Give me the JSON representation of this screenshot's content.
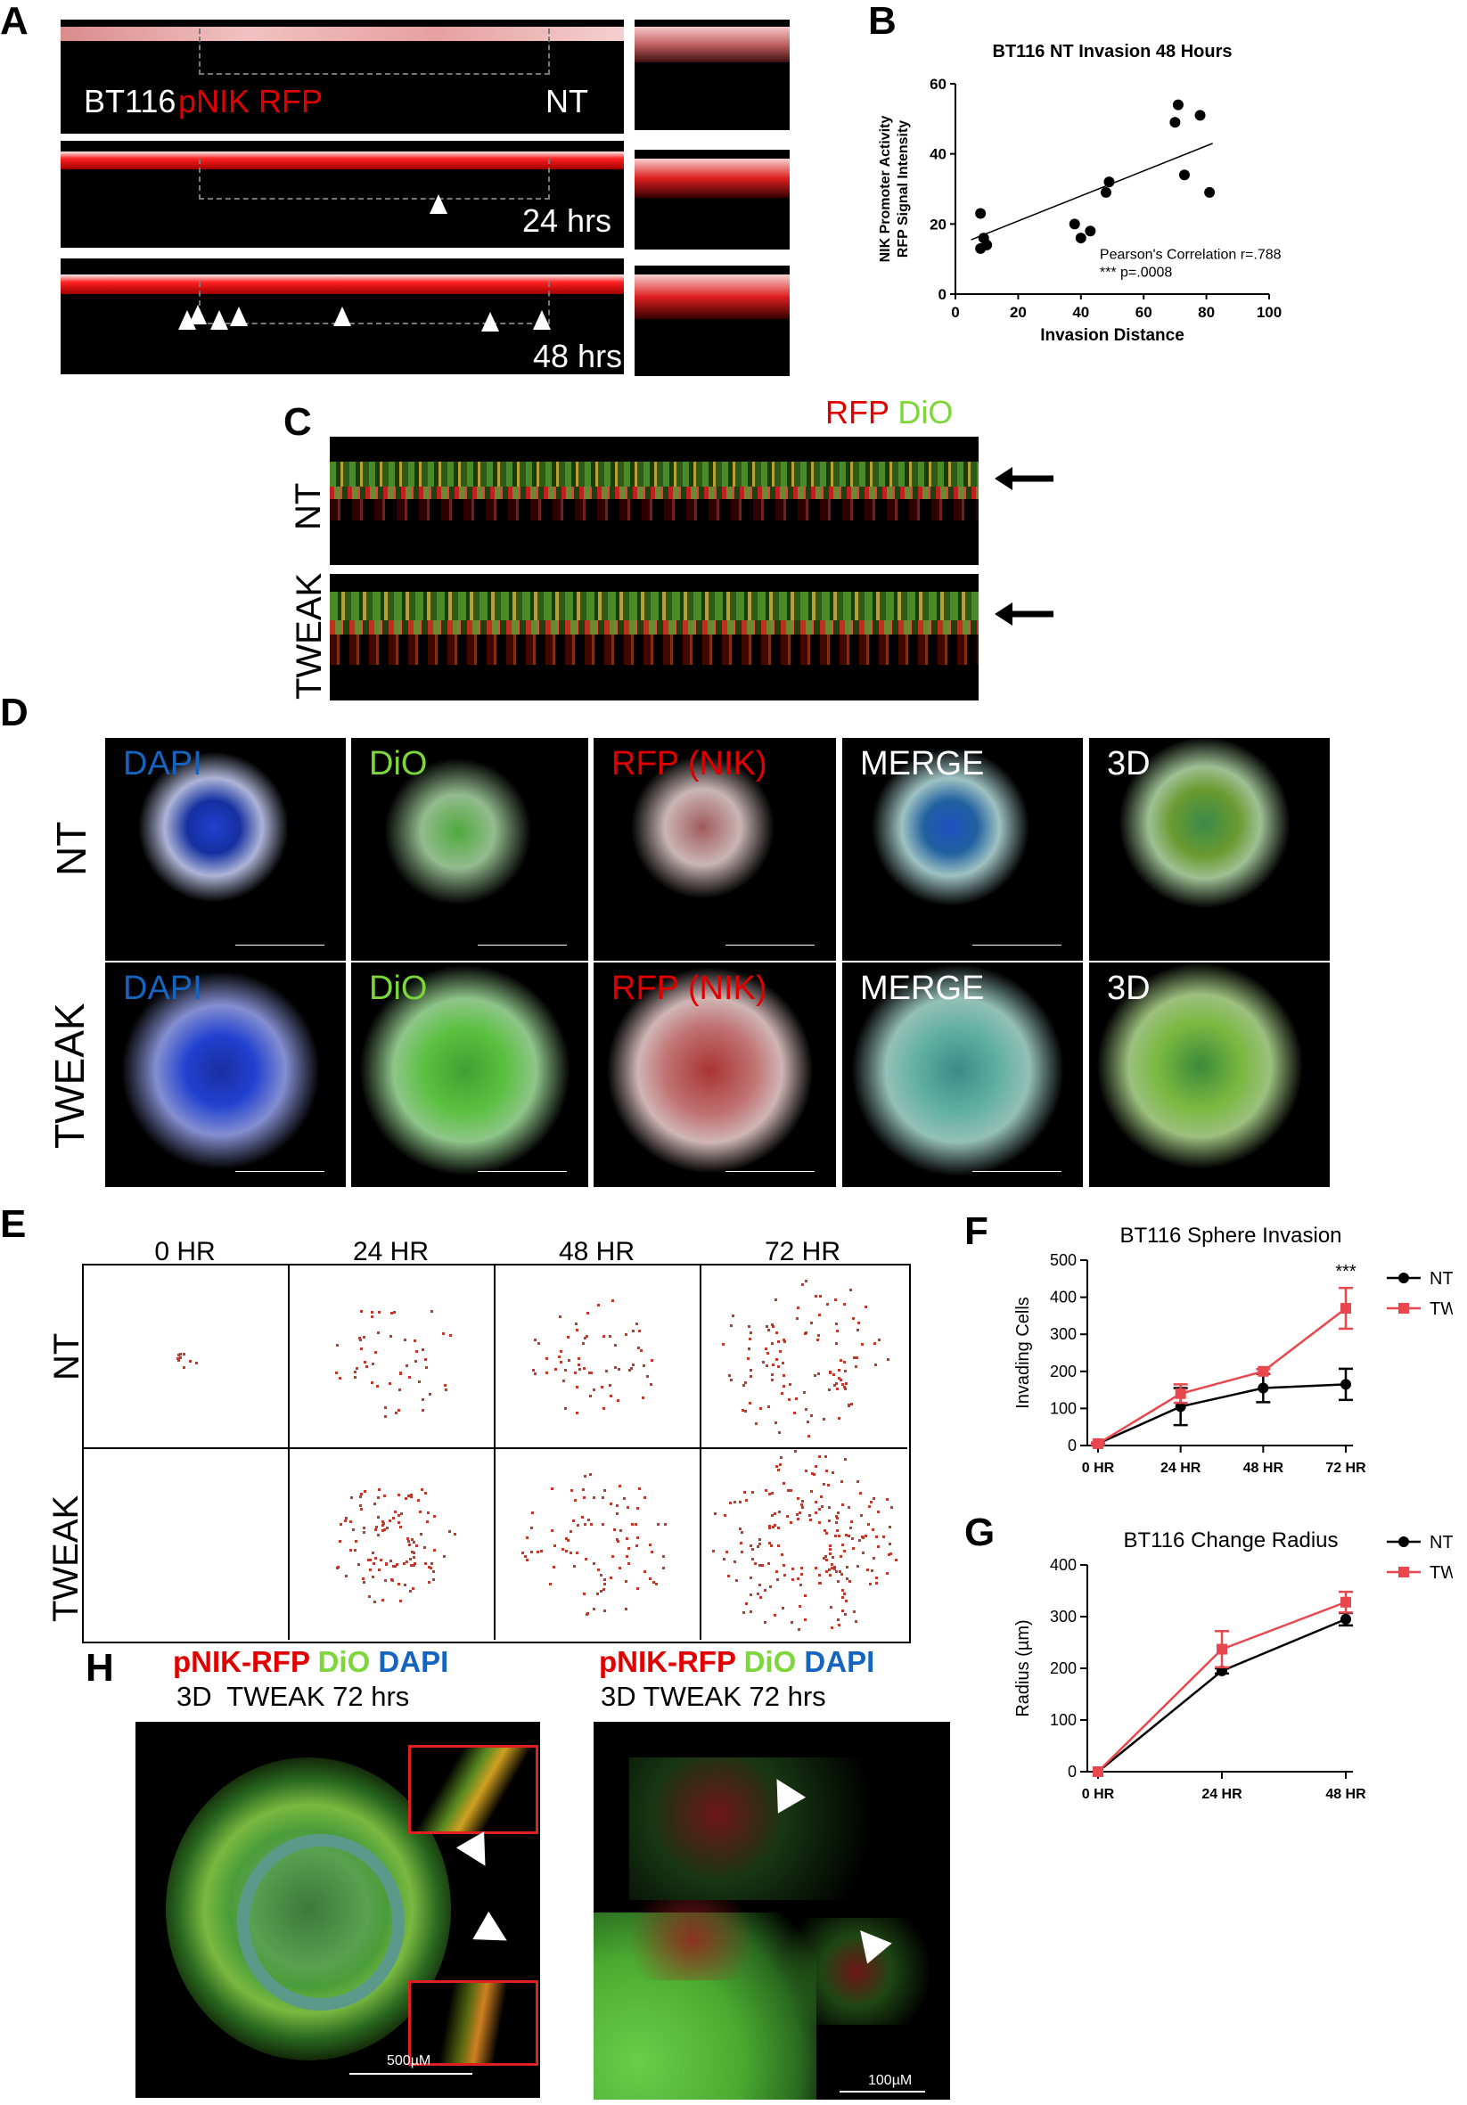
{
  "panels": {
    "A": {
      "letter": "A",
      "label_bt116": "BT116",
      "label_pnik_rfp": "pNIK RFP",
      "label_nt": "NT",
      "label_24": "24 hrs",
      "label_48": "48 hrs"
    },
    "B": {
      "letter": "B"
    },
    "C": {
      "letter": "C",
      "legend_rfp": "RFP",
      "legend_dio": "DiO",
      "row_nt": "NT",
      "row_tweak": "TWEAK"
    },
    "D": {
      "letter": "D",
      "row_nt": "NT",
      "row_tweak": "TWEAK",
      "cols": [
        "DAPI",
        "DiO",
        "RFP (NIK)",
        "MERGE",
        "3D"
      ]
    },
    "E": {
      "letter": "E",
      "cols": [
        "0 HR",
        "24 HR",
        "48 HR",
        "72 HR"
      ],
      "row_nt": "NT",
      "row_tweak": "TWEAK"
    },
    "F": {
      "letter": "F"
    },
    "G": {
      "letter": "G"
    },
    "H": {
      "letter": "H",
      "left_line1_a": "pNIK-RFP",
      "left_line1_b": "DiO",
      "left_line1_c": "DAPI",
      "left_line2": "3D  TWEAK 72 hrs",
      "right_line1_a": "pNIK-RFP",
      "right_line1_b": "DiO",
      "right_line1_c": "DAPI",
      "right_line2": "3D TWEAK 72 hrs",
      "scale_left": "500µM",
      "scale_right": "100µM"
    }
  },
  "colors": {
    "nt": "#000000",
    "tw": "#e8474d",
    "rfp": "#e10000",
    "dio": "#7dd63a",
    "dapi": "#1565c0"
  },
  "chart_data": [
    {
      "id": "B",
      "type": "scatter",
      "title": "BT116 NT Invasion 48 Hours",
      "xlabel": "Invasion Distance",
      "ylabel_line1": "NIK Promoter Activity",
      "ylabel_line2": "RFP Signal Intensity",
      "xlim": [
        0,
        100
      ],
      "ylim": [
        0,
        60
      ],
      "xticks": [
        0,
        20,
        40,
        60,
        80,
        100
      ],
      "yticks": [
        0,
        20,
        40,
        60
      ],
      "points": [
        {
          "x": 8,
          "y": 23
        },
        {
          "x": 8,
          "y": 13
        },
        {
          "x": 9,
          "y": 16
        },
        {
          "x": 10,
          "y": 14
        },
        {
          "x": 38,
          "y": 20
        },
        {
          "x": 40,
          "y": 16
        },
        {
          "x": 43,
          "y": 18
        },
        {
          "x": 48,
          "y": 29
        },
        {
          "x": 49,
          "y": 32
        },
        {
          "x": 70,
          "y": 49
        },
        {
          "x": 71,
          "y": 54
        },
        {
          "x": 73,
          "y": 34
        },
        {
          "x": 78,
          "y": 51
        },
        {
          "x": 81,
          "y": 29
        }
      ],
      "trendline": {
        "x": [
          5,
          82
        ],
        "y": [
          15.5,
          43
        ]
      },
      "annotation_line1": "Pearson's  Correlation r=.788",
      "annotation_line2": "*** p=.0008"
    },
    {
      "id": "F",
      "type": "line",
      "title": "BT116 Sphere Invasion",
      "ylabel": "Invading Cells",
      "categories": [
        "0 HR",
        "24 HR",
        "48 HR",
        "72 HR"
      ],
      "ylim": [
        0,
        500
      ],
      "yticks": [
        0,
        100,
        200,
        300,
        400,
        500
      ],
      "series": [
        {
          "name": "NT",
          "values": [
            5,
            105,
            155,
            165
          ],
          "errors": [
            3,
            50,
            38,
            42
          ]
        },
        {
          "name": "TW",
          "values": [
            5,
            140,
            200,
            370
          ],
          "errors": [
            3,
            25,
            6,
            55
          ]
        }
      ],
      "annotation": "***",
      "legend": "right"
    },
    {
      "id": "G",
      "type": "line",
      "title": "BT116 Change Radius",
      "ylabel": "Radius (µm)",
      "categories": [
        "0 HR",
        "24 HR",
        "48 HR"
      ],
      "ylim": [
        0,
        400
      ],
      "yticks": [
        0,
        100,
        200,
        300,
        400
      ],
      "series": [
        {
          "name": "NT",
          "values": [
            0,
            195,
            295
          ],
          "errors": [
            0,
            5,
            12
          ]
        },
        {
          "name": "TW",
          "values": [
            0,
            237,
            328
          ],
          "errors": [
            0,
            35,
            20
          ]
        }
      ],
      "legend": "right"
    }
  ]
}
